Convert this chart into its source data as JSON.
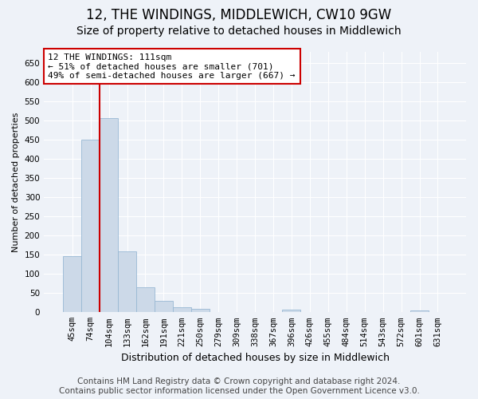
{
  "title": "12, THE WINDINGS, MIDDLEWICH, CW10 9GW",
  "subtitle": "Size of property relative to detached houses in Middlewich",
  "xlabel": "Distribution of detached houses by size in Middlewich",
  "ylabel": "Number of detached properties",
  "categories": [
    "45sqm",
    "74sqm",
    "104sqm",
    "133sqm",
    "162sqm",
    "191sqm",
    "221sqm",
    "250sqm",
    "279sqm",
    "309sqm",
    "338sqm",
    "367sqm",
    "396sqm",
    "426sqm",
    "455sqm",
    "484sqm",
    "514sqm",
    "543sqm",
    "572sqm",
    "601sqm",
    "631sqm"
  ],
  "values": [
    147,
    450,
    507,
    158,
    65,
    30,
    13,
    8,
    0,
    0,
    0,
    0,
    6,
    0,
    0,
    0,
    0,
    0,
    0,
    5,
    0
  ],
  "bar_color": "#ccd9e8",
  "bar_edge_color": "#99b8d4",
  "red_line_index": 2,
  "annotation_line1": "12 THE WINDINGS: 111sqm",
  "annotation_line2": "← 51% of detached houses are smaller (701)",
  "annotation_line3": "49% of semi-detached houses are larger (667) →",
  "annotation_box_color": "#ffffff",
  "annotation_box_edge": "#cc0000",
  "ylim": [
    0,
    680
  ],
  "yticks": [
    0,
    50,
    100,
    150,
    200,
    250,
    300,
    350,
    400,
    450,
    500,
    550,
    600,
    650
  ],
  "footer_line1": "Contains HM Land Registry data © Crown copyright and database right 2024.",
  "footer_line2": "Contains public sector information licensed under the Open Government Licence v3.0.",
  "background_color": "#eef2f8",
  "grid_color": "#ffffff",
  "title_fontsize": 12,
  "subtitle_fontsize": 10,
  "ylabel_fontsize": 8,
  "xlabel_fontsize": 9,
  "tick_fontsize": 7.5,
  "footer_fontsize": 7.5,
  "annotation_fontsize": 8
}
